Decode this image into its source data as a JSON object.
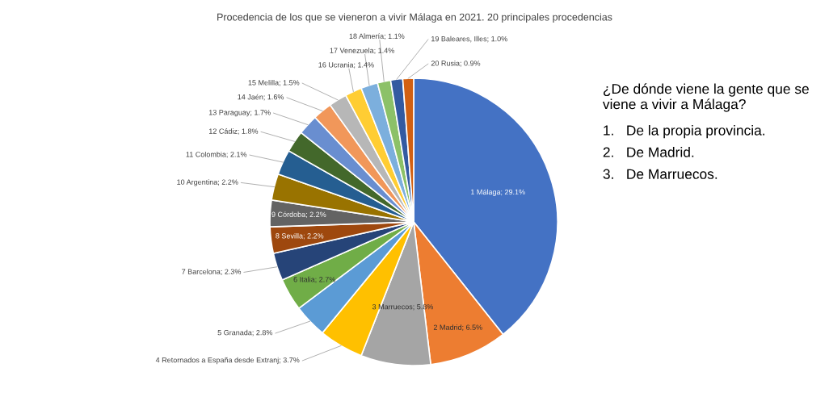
{
  "chart_data": {
    "type": "pie",
    "title": "Procedencia de los que se vieneron a vivir Málaga en 2021. 20 principales procedencias",
    "categories": [
      "1 Málaga",
      "2 Madrid",
      "3 Marruecos",
      "4 Retornados a España desde Extranj",
      "5 Granada",
      "6 Italia",
      "7 Barcelona",
      "8 Sevilla",
      "9 Córdoba",
      "10 Argentina",
      "11 Colombia",
      "12 Cádiz",
      "13 Paraguay",
      "14 Jaén",
      "15 Melilla",
      "16 Ucrania",
      "17 Venezuela",
      "18 Almería",
      "19 Baleares, Illes",
      "20 Rusia"
    ],
    "values": [
      29.1,
      6.5,
      5.8,
      3.7,
      2.8,
      2.7,
      2.3,
      2.2,
      2.2,
      2.2,
      2.1,
      1.8,
      1.7,
      1.6,
      1.5,
      1.4,
      1.4,
      1.1,
      1.0,
      0.9
    ],
    "value_labels": [
      "29.1%",
      "6.5%",
      "5.8%",
      "3.7%",
      "2.8%",
      "2.7%",
      "2.3%",
      "2.2%",
      "2.2%",
      "2.2%",
      "2.1%",
      "1.8%",
      "1.7%",
      "1.6%",
      "1.5%",
      "1.4%",
      "1.4%",
      "1.1%",
      "1.0%",
      "0.9%"
    ],
    "colors": [
      "#4472c4",
      "#ed7d31",
      "#a5a5a5",
      "#ffc000",
      "#5b9bd5",
      "#70ad47",
      "#264478",
      "#9e480e",
      "#636363",
      "#997300",
      "#255e91",
      "#43682b",
      "#698ed0",
      "#f1975a",
      "#b7b7b7",
      "#ffcd33",
      "#7cafdd",
      "#8cc168",
      "#335aa1",
      "#d26012"
    ],
    "annotations": [
      "¿De dónde viene la gente que se viene a vivir a Málaga?",
      "1.   De la propia provincia.",
      "2.   De Madrid.",
      "3.   De Marruecos."
    ]
  }
}
